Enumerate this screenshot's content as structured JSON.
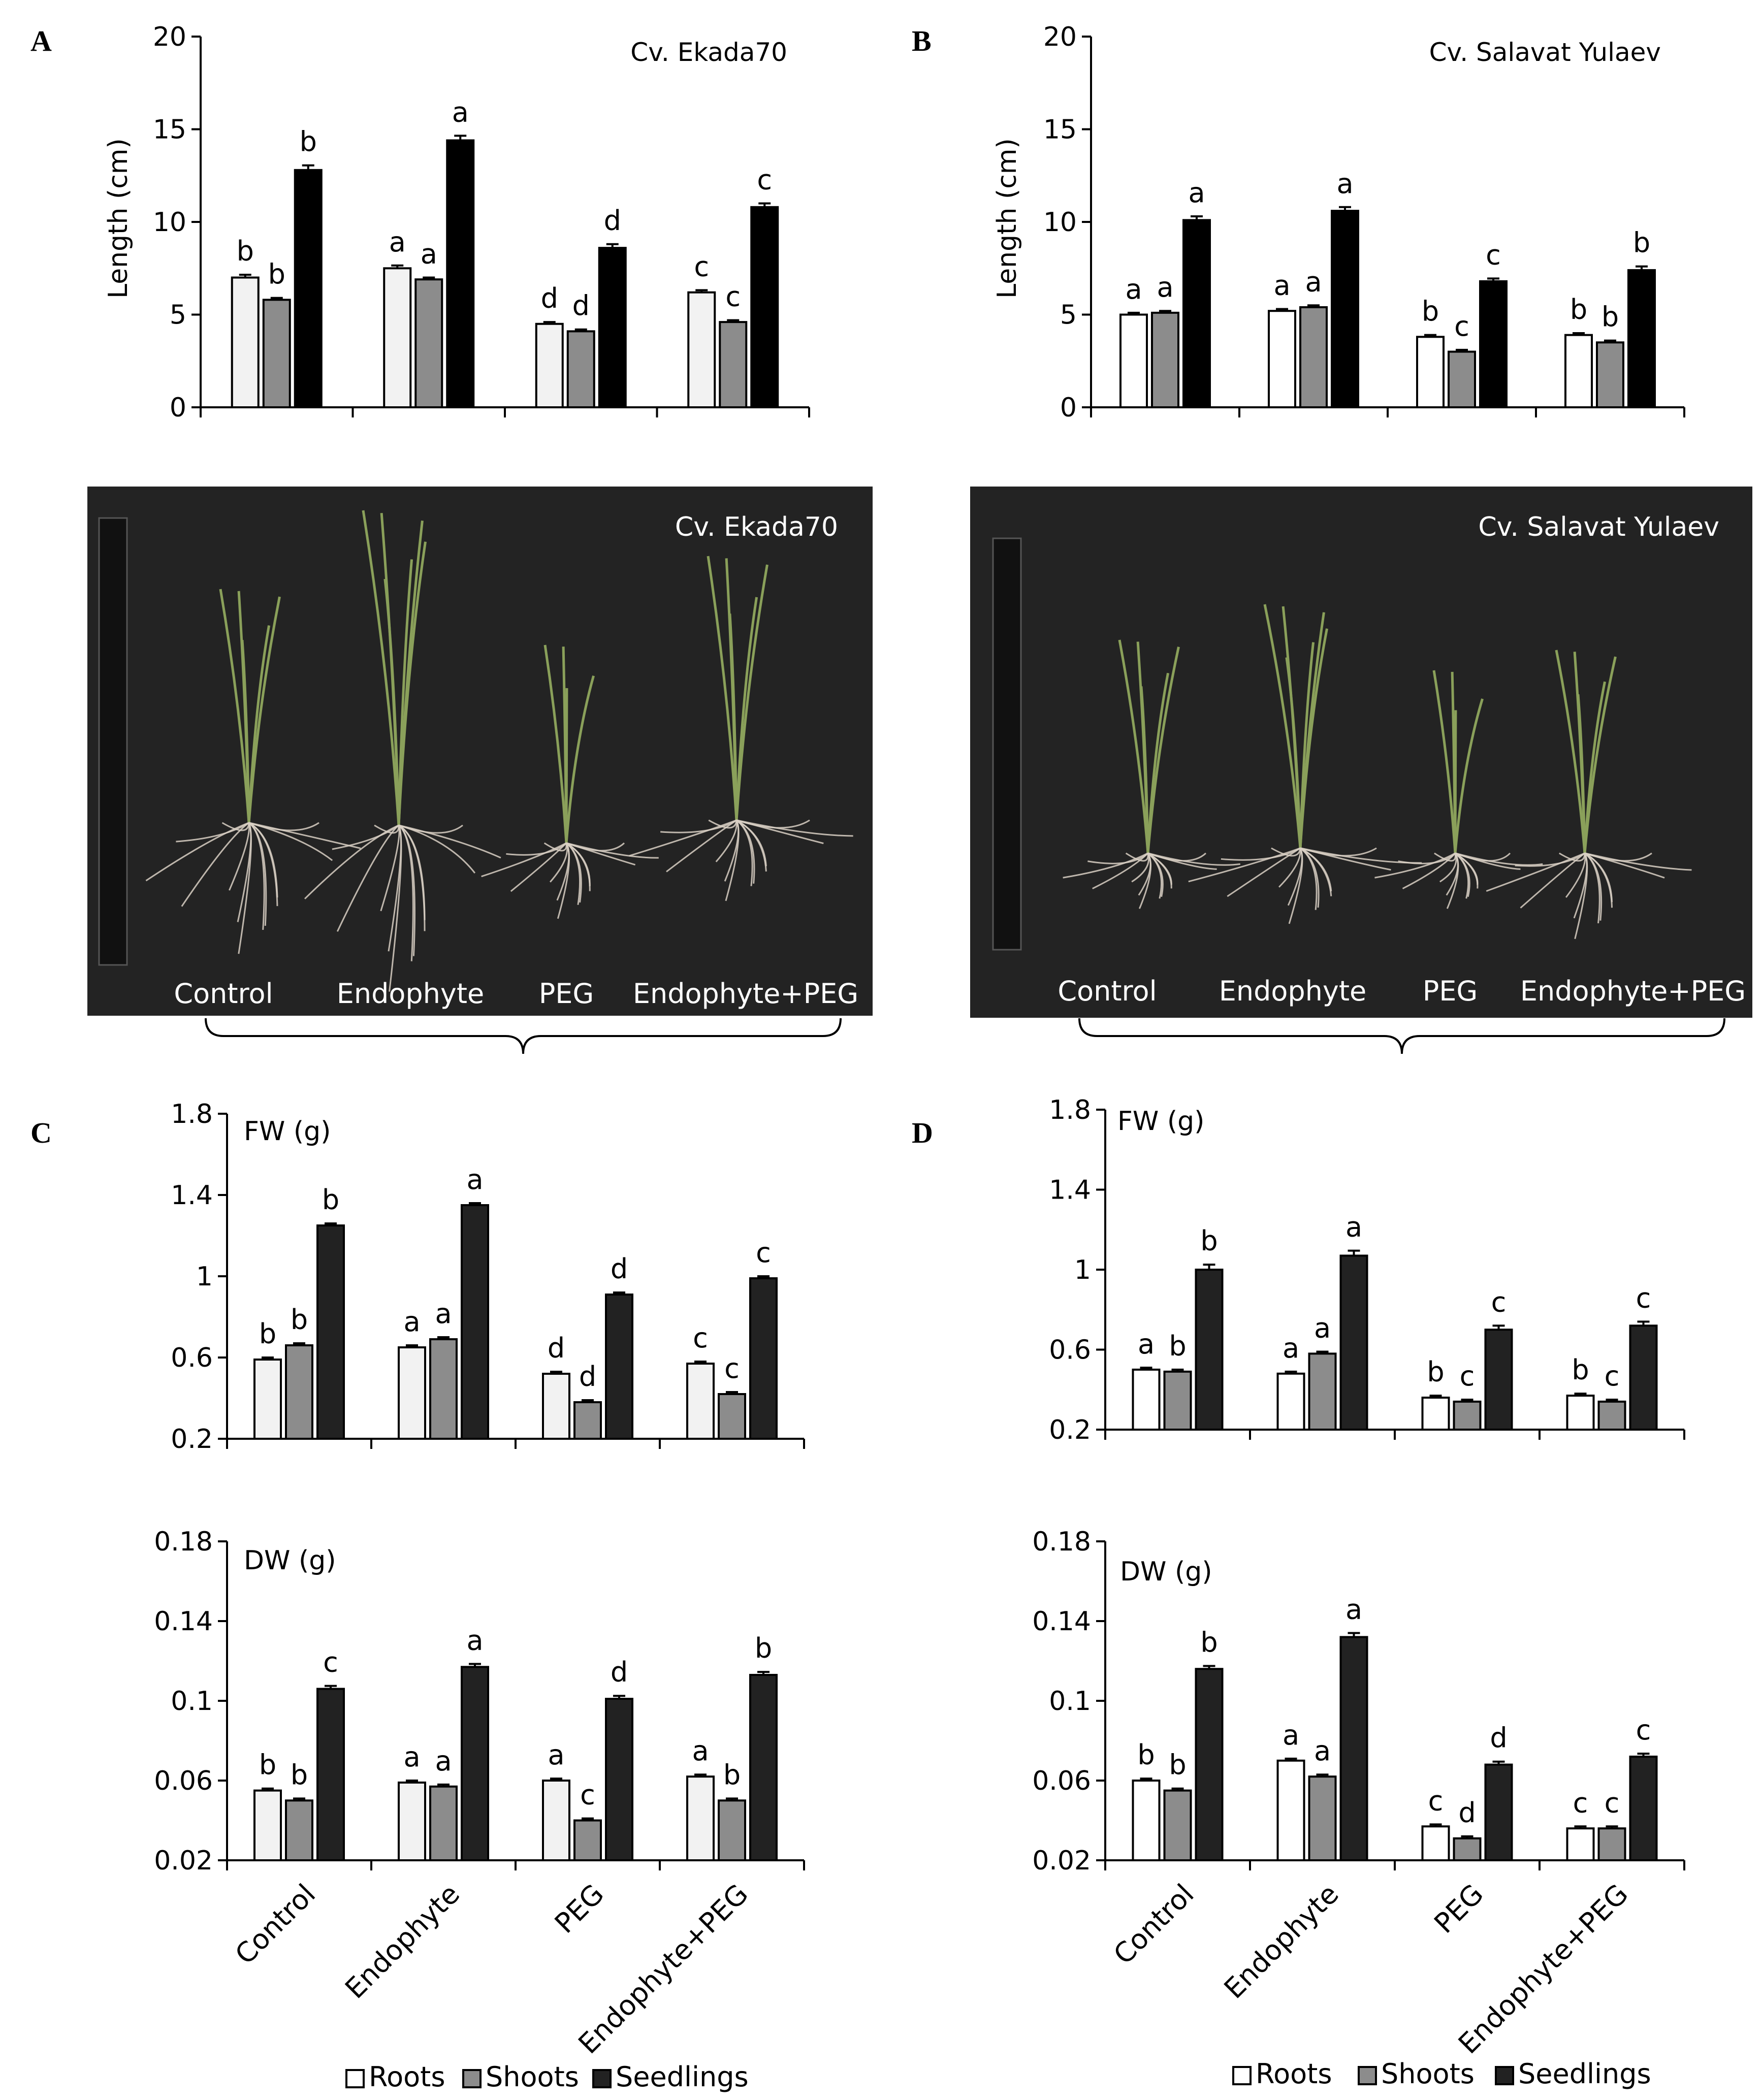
{
  "panels": {
    "A": "A",
    "B": "B",
    "C": "C",
    "D": "D"
  },
  "colors": {
    "roots_a": "#f2f2f2",
    "roots_b": "#ffffff",
    "shoots": "#8c8c8c",
    "seedlings_a": "#000000",
    "seedlings_cd": "#222222",
    "photo_bg": "#232323",
    "plant": "#8aa05a",
    "root": "#d9d0c4"
  },
  "legend": {
    "roots": "Roots",
    "shoots": "Shoots",
    "seedlings": "Seedlings"
  },
  "photos": {
    "left": {
      "cultivar": "Cv. Ekada70",
      "labels": [
        "Control",
        "Endophyte",
        "PEG",
        "Endophyte+PEG"
      ]
    },
    "right": {
      "cultivar": "Cv. Salavat Yulaev",
      "labels": [
        "Control",
        "Endophyte",
        "PEG",
        "Endophyte+PEG"
      ]
    }
  },
  "chart_data": [
    {
      "id": "A",
      "type": "bar",
      "title": "Cv. Ekada70",
      "categories": [
        "Control",
        "Endophyte",
        "PEG",
        "Endophyte+PEG"
      ],
      "ylabel": "Length  (cm)",
      "ylim": [
        0,
        20
      ],
      "yticks": [
        "0",
        "5",
        "10",
        "15",
        "20"
      ],
      "series": [
        {
          "name": "Roots",
          "values": [
            7.0,
            7.5,
            4.5,
            6.2
          ],
          "err": [
            0.15,
            0.15,
            0.1,
            0.12
          ],
          "letters": [
            "b",
            "a",
            "d",
            "c"
          ]
        },
        {
          "name": "Shoots",
          "values": [
            5.8,
            6.9,
            4.1,
            4.6
          ],
          "err": [
            0.1,
            0.1,
            0.1,
            0.1
          ],
          "letters": [
            "b",
            "a",
            "d",
            "c"
          ]
        },
        {
          "name": "Seedlings",
          "values": [
            12.8,
            14.4,
            8.6,
            10.8
          ],
          "err": [
            0.25,
            0.25,
            0.2,
            0.2
          ],
          "letters": [
            "b",
            "a",
            "d",
            "c"
          ]
        }
      ]
    },
    {
      "id": "B",
      "type": "bar",
      "title": "Cv. Salavat Yulaev",
      "categories": [
        "Control",
        "Endophyte",
        "PEG",
        "Endophyte+PEG"
      ],
      "ylabel": "Length  (cm)",
      "ylim": [
        0,
        20
      ],
      "yticks": [
        "0",
        "5",
        "10",
        "15",
        "20"
      ],
      "series": [
        {
          "name": "Roots",
          "values": [
            5.0,
            5.2,
            3.8,
            3.9
          ],
          "err": [
            0.1,
            0.1,
            0.1,
            0.1
          ],
          "letters": [
            "a",
            "a",
            "b",
            "b"
          ]
        },
        {
          "name": "Shoots",
          "values": [
            5.1,
            5.4,
            3.0,
            3.5
          ],
          "err": [
            0.1,
            0.1,
            0.1,
            0.1
          ],
          "letters": [
            "a",
            "a",
            "c",
            "b"
          ]
        },
        {
          "name": "Seedlings",
          "values": [
            10.1,
            10.6,
            6.8,
            7.4
          ],
          "err": [
            0.2,
            0.2,
            0.15,
            0.2
          ],
          "letters": [
            "a",
            "a",
            "c",
            "b"
          ]
        }
      ]
    },
    {
      "id": "C-FW",
      "type": "bar",
      "title": "FW (g)",
      "categories": [
        "Control",
        "Endophyte",
        "PEG",
        "Endophyte+PEG"
      ],
      "ylim": [
        0.2,
        1.8
      ],
      "yticks": [
        "0.2",
        "0.6",
        "1",
        "1.4",
        "1.8"
      ],
      "series": [
        {
          "name": "Roots",
          "values": [
            0.59,
            0.65,
            0.52,
            0.57
          ],
          "err": [
            0.01,
            0.01,
            0.01,
            0.01
          ],
          "letters": [
            "b",
            "a",
            "d",
            "c"
          ]
        },
        {
          "name": "Shoots",
          "values": [
            0.66,
            0.69,
            0.38,
            0.42
          ],
          "err": [
            0.01,
            0.01,
            0.01,
            0.01
          ],
          "letters": [
            "b",
            "a",
            "d",
            "c"
          ]
        },
        {
          "name": "Seedlings",
          "values": [
            1.25,
            1.35,
            0.91,
            0.99
          ],
          "err": [
            0.01,
            0.01,
            0.01,
            0.01
          ],
          "letters": [
            "b",
            "a",
            "d",
            "c"
          ]
        }
      ]
    },
    {
      "id": "C-DW",
      "type": "bar",
      "title": "DW (g)",
      "categories": [
        "Control",
        "Endophyte",
        "PEG",
        "Endophyte+PEG"
      ],
      "ylim": [
        0.02,
        0.18
      ],
      "yticks": [
        "0.02",
        "0.06",
        "0.1",
        "0.14",
        "0.18"
      ],
      "series": [
        {
          "name": "Roots",
          "values": [
            0.055,
            0.059,
            0.06,
            0.062
          ],
          "err": [
            0.001,
            0.001,
            0.001,
            0.001
          ],
          "letters": [
            "b",
            "a",
            "a",
            "a"
          ]
        },
        {
          "name": "Shoots",
          "values": [
            0.05,
            0.057,
            0.04,
            0.05
          ],
          "err": [
            0.001,
            0.001,
            0.001,
            0.001
          ],
          "letters": [
            "b",
            "a",
            "c",
            "b"
          ]
        },
        {
          "name": "Seedlings",
          "values": [
            0.106,
            0.117,
            0.101,
            0.113
          ],
          "err": [
            0.0015,
            0.0015,
            0.0015,
            0.0015
          ],
          "letters": [
            "c",
            "a",
            "d",
            "b"
          ]
        }
      ]
    },
    {
      "id": "D-FW",
      "type": "bar",
      "title": "FW (g)",
      "categories": [
        "Control",
        "Endophyte",
        "PEG",
        "Endophyte+PEG"
      ],
      "ylim": [
        0.2,
        1.8
      ],
      "yticks": [
        "0.2",
        "0.6",
        "1",
        "1.4",
        "1.8"
      ],
      "series": [
        {
          "name": "Roots",
          "values": [
            0.5,
            0.48,
            0.36,
            0.37
          ],
          "err": [
            0.01,
            0.01,
            0.01,
            0.01
          ],
          "letters": [
            "a",
            "a",
            "b",
            "b"
          ]
        },
        {
          "name": "Shoots",
          "values": [
            0.49,
            0.58,
            0.34,
            0.34
          ],
          "err": [
            0.01,
            0.01,
            0.01,
            0.01
          ],
          "letters": [
            "b",
            "a",
            "c",
            "c"
          ]
        },
        {
          "name": "Seedlings",
          "values": [
            1.0,
            1.07,
            0.7,
            0.72
          ],
          "err": [
            0.025,
            0.025,
            0.02,
            0.02
          ],
          "letters": [
            "b",
            "a",
            "c",
            "c"
          ]
        }
      ]
    },
    {
      "id": "D-DW",
      "type": "bar",
      "title": "DW (g)",
      "categories": [
        "Control",
        "Endophyte",
        "PEG",
        "Endophyte+PEG"
      ],
      "ylim": [
        0.02,
        0.18
      ],
      "yticks": [
        "0.02",
        "0.06",
        "0.1",
        "0.14",
        "0.18"
      ],
      "series": [
        {
          "name": "Roots",
          "values": [
            0.06,
            0.07,
            0.037,
            0.036
          ],
          "err": [
            0.001,
            0.001,
            0.001,
            0.001
          ],
          "letters": [
            "b",
            "a",
            "c",
            "c"
          ]
        },
        {
          "name": "Shoots",
          "values": [
            0.055,
            0.062,
            0.031,
            0.036
          ],
          "err": [
            0.001,
            0.001,
            0.001,
            0.001
          ],
          "letters": [
            "b",
            "a",
            "d",
            "c"
          ]
        },
        {
          "name": "Seedlings",
          "values": [
            0.116,
            0.132,
            0.068,
            0.072
          ],
          "err": [
            0.0015,
            0.002,
            0.0015,
            0.0015
          ],
          "letters": [
            "b",
            "a",
            "d",
            "c"
          ]
        }
      ]
    }
  ]
}
